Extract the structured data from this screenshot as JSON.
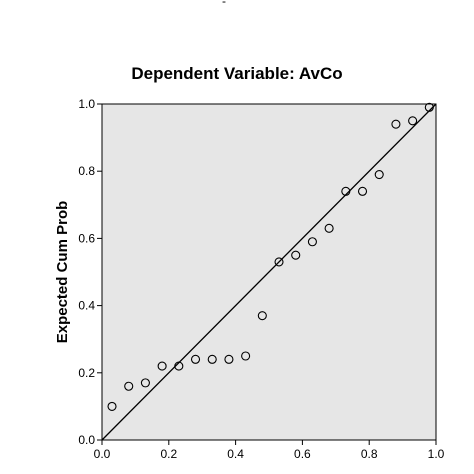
{
  "top_fragment": "-",
  "chart_data": {
    "type": "scatter",
    "title": "Dependent Variable: AvCo",
    "xlabel": "",
    "ylabel": "Expected Cum Prob",
    "xlim": [
      0.0,
      1.0
    ],
    "ylim": [
      0.0,
      1.0
    ],
    "xticks": [
      "0.0",
      "0.2",
      "0.4",
      "0.6",
      "0.8",
      "1.0"
    ],
    "yticks": [
      "0.0",
      "0.2",
      "0.4",
      "0.6",
      "0.8",
      "1.0"
    ],
    "reference_line": [
      [
        0.0,
        0.0
      ],
      [
        1.0,
        1.0
      ]
    ],
    "plot_background": "#e6e6e6",
    "marker_color": "#000000",
    "grid": false,
    "points": [
      {
        "x": 0.03,
        "y": 0.1
      },
      {
        "x": 0.08,
        "y": 0.16
      },
      {
        "x": 0.13,
        "y": 0.17
      },
      {
        "x": 0.18,
        "y": 0.22
      },
      {
        "x": 0.23,
        "y": 0.22
      },
      {
        "x": 0.28,
        "y": 0.24
      },
      {
        "x": 0.33,
        "y": 0.24
      },
      {
        "x": 0.38,
        "y": 0.24
      },
      {
        "x": 0.43,
        "y": 0.25
      },
      {
        "x": 0.48,
        "y": 0.37
      },
      {
        "x": 0.53,
        "y": 0.53
      },
      {
        "x": 0.58,
        "y": 0.55
      },
      {
        "x": 0.63,
        "y": 0.59
      },
      {
        "x": 0.68,
        "y": 0.63
      },
      {
        "x": 0.73,
        "y": 0.74
      },
      {
        "x": 0.78,
        "y": 0.74
      },
      {
        "x": 0.83,
        "y": 0.79
      },
      {
        "x": 0.88,
        "y": 0.94
      },
      {
        "x": 0.93,
        "y": 0.95
      },
      {
        "x": 0.98,
        "y": 0.99
      }
    ]
  }
}
